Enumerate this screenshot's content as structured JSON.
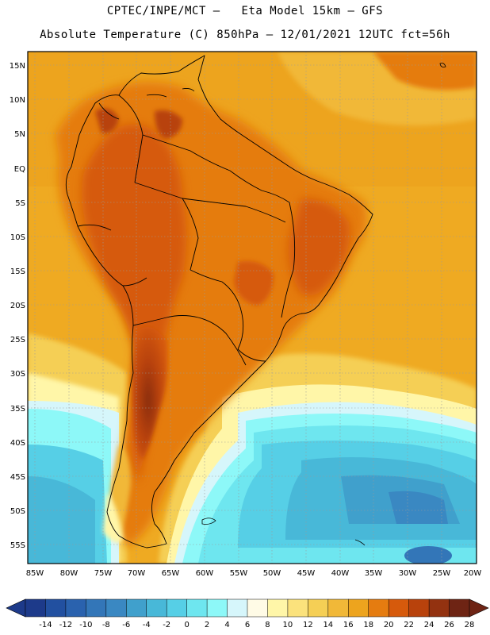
{
  "header": {
    "line1": "CPTEC/INPE/MCT –   Eta Model 15km – GFS",
    "line2": "Absolute Temperature (C) 850hPa – 12/01/2021 12UTC fct=56h"
  },
  "axes": {
    "lat_labels": [
      "15N",
      "10N",
      "5N",
      "EQ",
      "5S",
      "10S",
      "15S",
      "20S",
      "25S",
      "30S",
      "35S",
      "40S",
      "45S",
      "50S",
      "55S"
    ],
    "lon_labels": [
      "85W",
      "80W",
      "75W",
      "70W",
      "65W",
      "60W",
      "55W",
      "50W",
      "45W",
      "40W",
      "35W",
      "30W",
      "25W",
      "20W"
    ]
  },
  "colorbar": {
    "labels": [
      "-14",
      "-12",
      "-10",
      "-8",
      "-6",
      "-4",
      "-2",
      "0",
      "2",
      "4",
      "6",
      "8",
      "10",
      "12",
      "14",
      "16",
      "18",
      "20",
      "22",
      "24",
      "26",
      "28"
    ],
    "colors": [
      "#1d3a8a",
      "#2250a0",
      "#2a62ae",
      "#3376b8",
      "#3a88c2",
      "#40a0cc",
      "#48b8d8",
      "#56cfe6",
      "#6ee6ef",
      "#8df8f8",
      "#d6f6fb",
      "#fffbe6",
      "#fff6a8",
      "#fbe27c",
      "#f5cf55",
      "#f1b838",
      "#eda41e",
      "#e57c10",
      "#d65a0c",
      "#b8420c",
      "#933210",
      "#6e2414"
    ]
  },
  "legend": {
    "unit": "°C"
  }
}
